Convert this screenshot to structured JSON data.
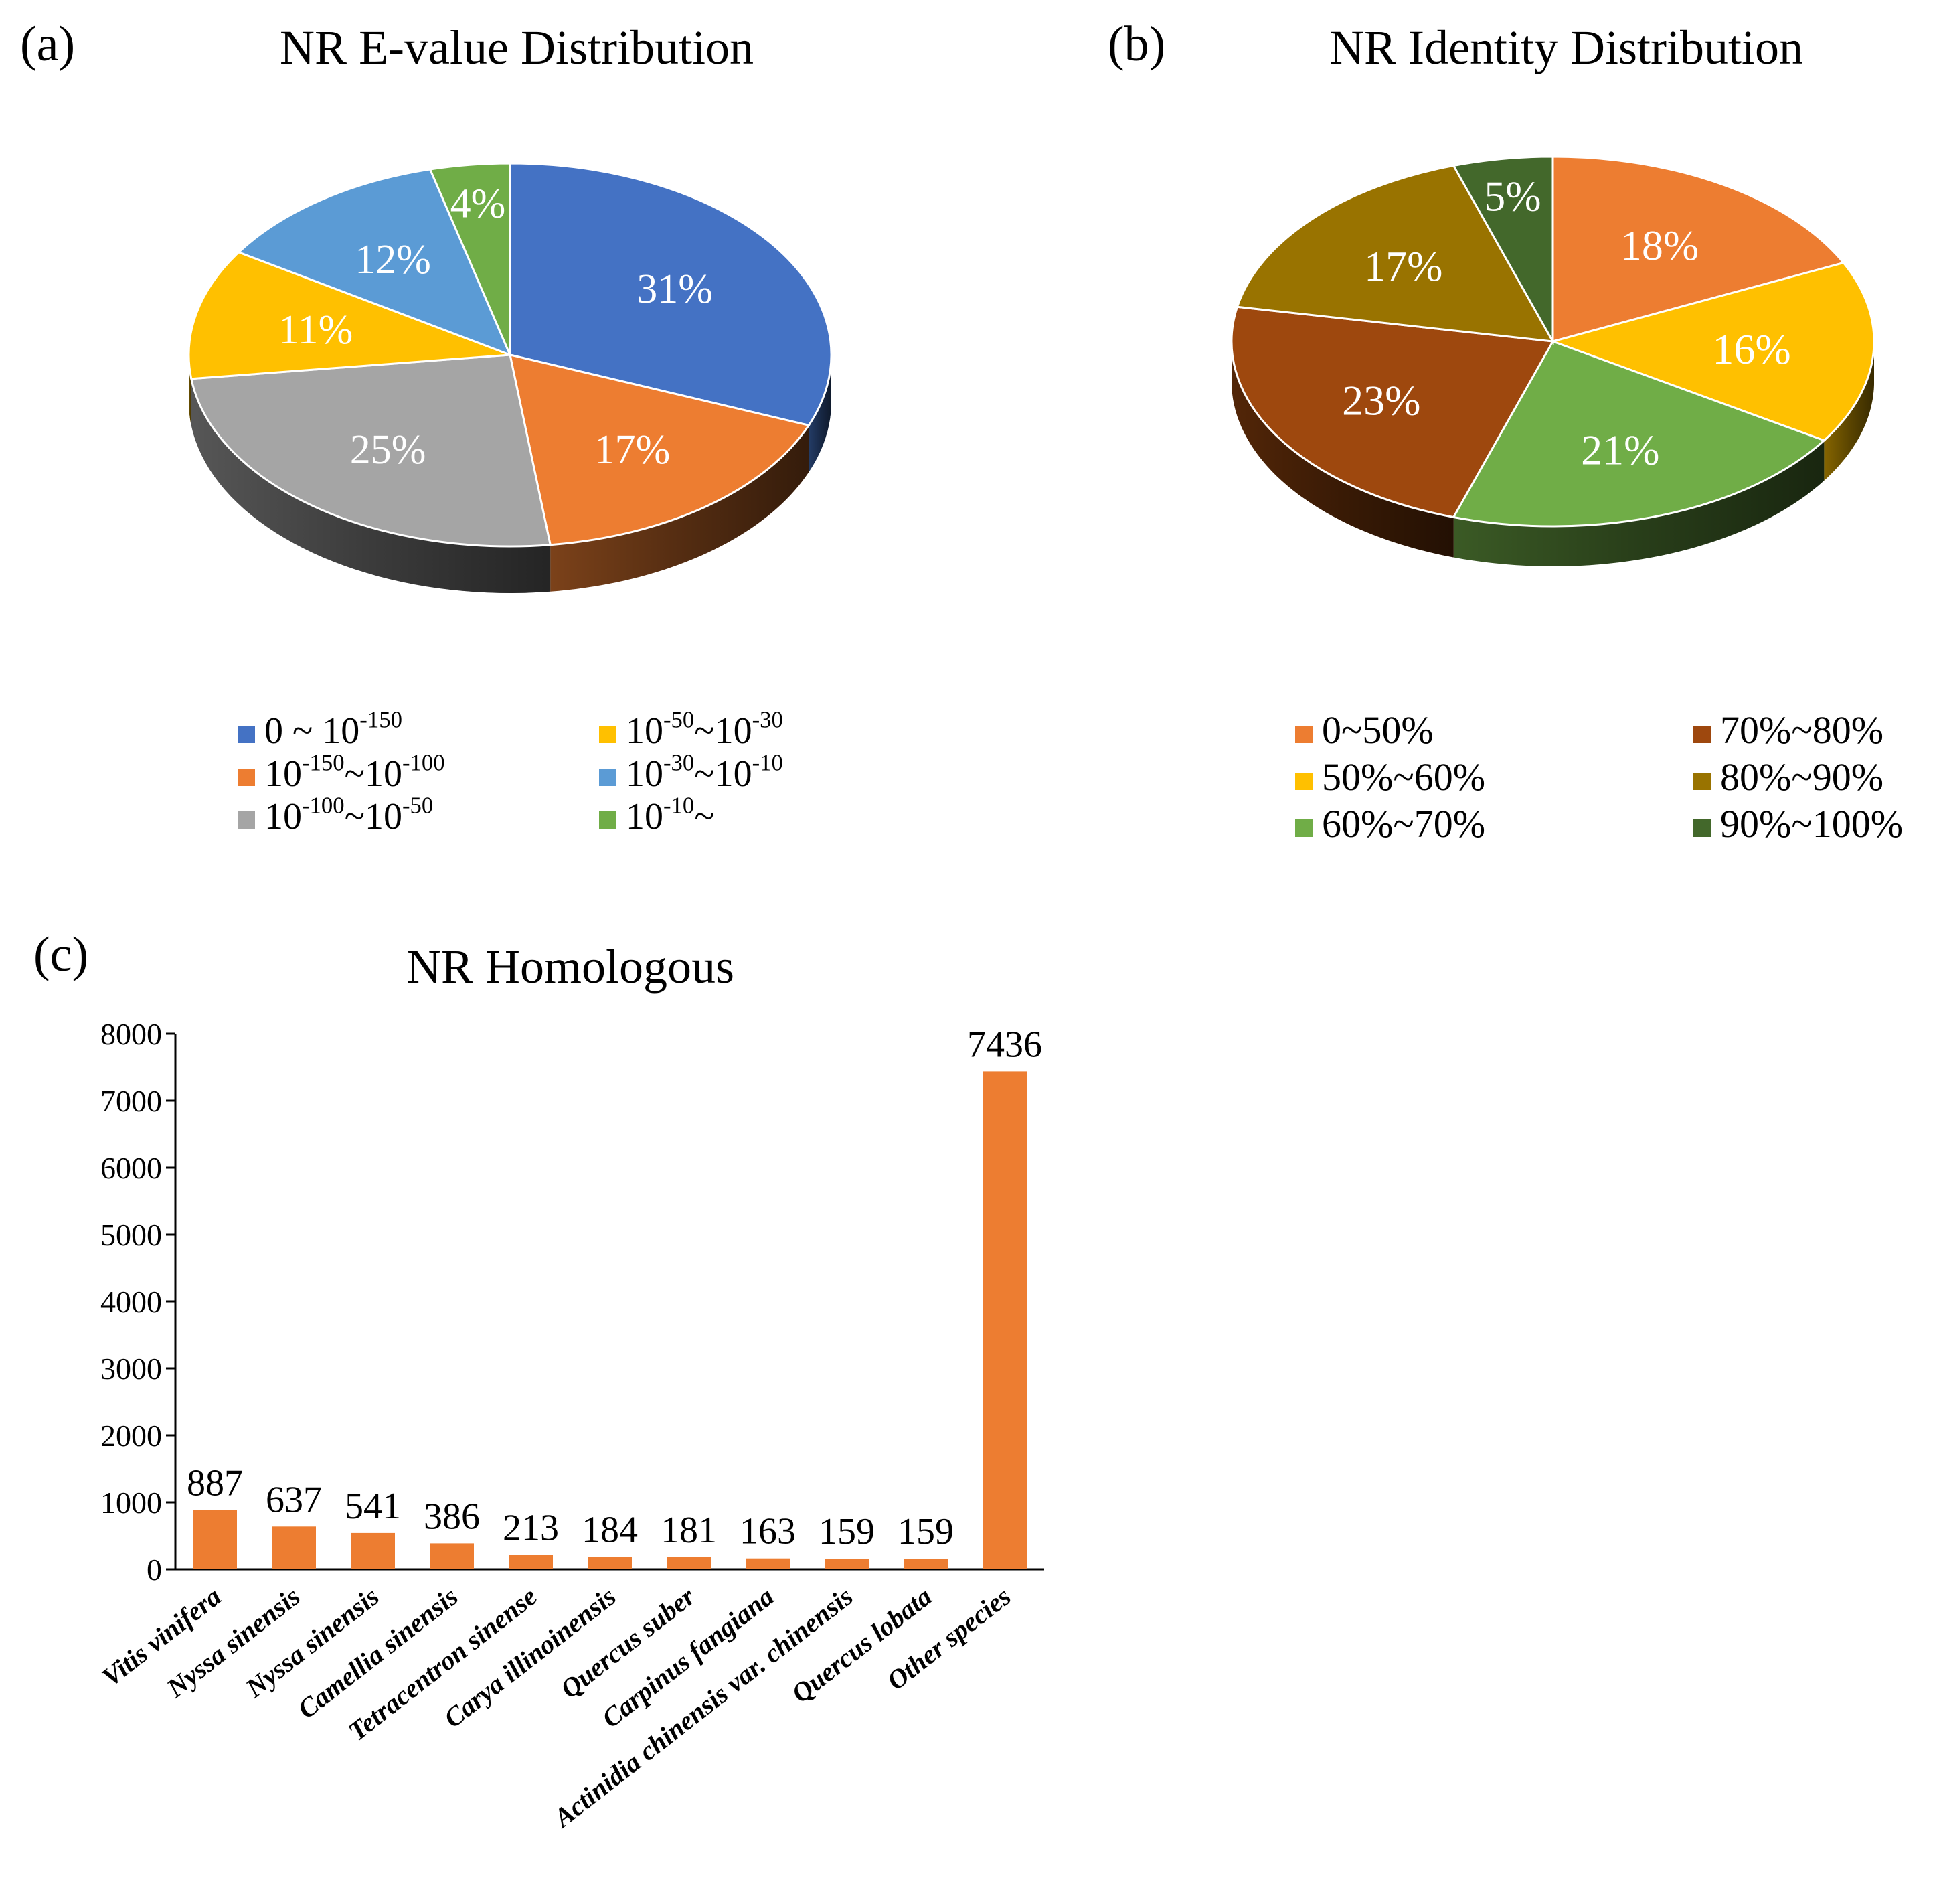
{
  "chart_data": [
    {
      "panel_label": "(a)",
      "type": "pie",
      "title": "NR E-value Distribution",
      "start_angle_deg": 0,
      "slices": [
        {
          "label": "31%",
          "value": 31,
          "color": "#4472C4"
        },
        {
          "label": "17%",
          "value": 17,
          "color": "#ED7D31"
        },
        {
          "label": "25%",
          "value": 25,
          "color": "#A5A5A5"
        },
        {
          "label": "11%",
          "value": 11,
          "color": "#FFC000"
        },
        {
          "label": "12%",
          "value": 12,
          "color": "#5B9BD5"
        },
        {
          "label": "4%",
          "value": 4,
          "color": "#70AD47"
        }
      ],
      "legend": [
        {
          "base": "0 ~ 10",
          "sup": "-150",
          "color": "#4472C4"
        },
        {
          "base": "10",
          "sup": "-150",
          "mid": "~10",
          "sup2": "-100",
          "color": "#ED7D31"
        },
        {
          "base": "10",
          "sup": "-100",
          "mid": "~10",
          "sup2": "-50",
          "color": "#A5A5A5"
        },
        {
          "base": "10",
          "sup": "-50",
          "mid": "~10",
          "sup2": "-30",
          "color": "#FFC000"
        },
        {
          "base": "10",
          "sup": "-30",
          "mid": "~10",
          "sup2": "-10",
          "color": "#5B9BD5"
        },
        {
          "base": "10",
          "sup": "-10",
          "mid": "~",
          "sup2": "",
          "color": "#70AD47"
        }
      ]
    },
    {
      "panel_label": "(b)",
      "type": "pie",
      "title": "NR Identity Distribution",
      "start_angle_deg": 0,
      "slices": [
        {
          "label": "18%",
          "value": 18,
          "color": "#ED7D31"
        },
        {
          "label": "16%",
          "value": 16,
          "color": "#FFC000"
        },
        {
          "label": "21%",
          "value": 21,
          "color": "#70AD47"
        },
        {
          "label": "23%",
          "value": 23,
          "color": "#9E480E"
        },
        {
          "label": "17%",
          "value": 17,
          "color": "#997300"
        },
        {
          "label": "5%",
          "value": 5,
          "color": "#43682B"
        }
      ],
      "legend": [
        {
          "text": "0~50%",
          "color": "#ED7D31"
        },
        {
          "text": "50%~60%",
          "color": "#FFC000"
        },
        {
          "text": "60%~70%",
          "color": "#70AD47"
        },
        {
          "text": "70%~80%",
          "color": "#9E480E"
        },
        {
          "text": "80%~90%",
          "color": "#997300"
        },
        {
          "text": "90%~100%",
          "color": "#43682B"
        }
      ]
    },
    {
      "panel_label": "(c)",
      "type": "bar",
      "title": "NR Homologous",
      "categories": [
        "Vitis vinifera",
        "Nyssa sinensis",
        "Nyssa sinensis",
        "Camellia sinensis",
        "Tetracentron sinense",
        "Carya illinoinensis",
        "Quercus suber",
        "Carpinus fangiana",
        "Actinidia chinensis var. chinensis",
        "Quercus lobata",
        "Other species"
      ],
      "values": [
        887,
        637,
        541,
        386,
        213,
        184,
        181,
        163,
        159,
        159,
        7436
      ],
      "ylim": [
        0,
        8000
      ],
      "yticks": [
        0,
        1000,
        2000,
        3000,
        4000,
        5000,
        6000,
        7000,
        8000
      ],
      "xlabel": "",
      "ylabel": "",
      "bar_color": "#ED7D31"
    }
  ]
}
